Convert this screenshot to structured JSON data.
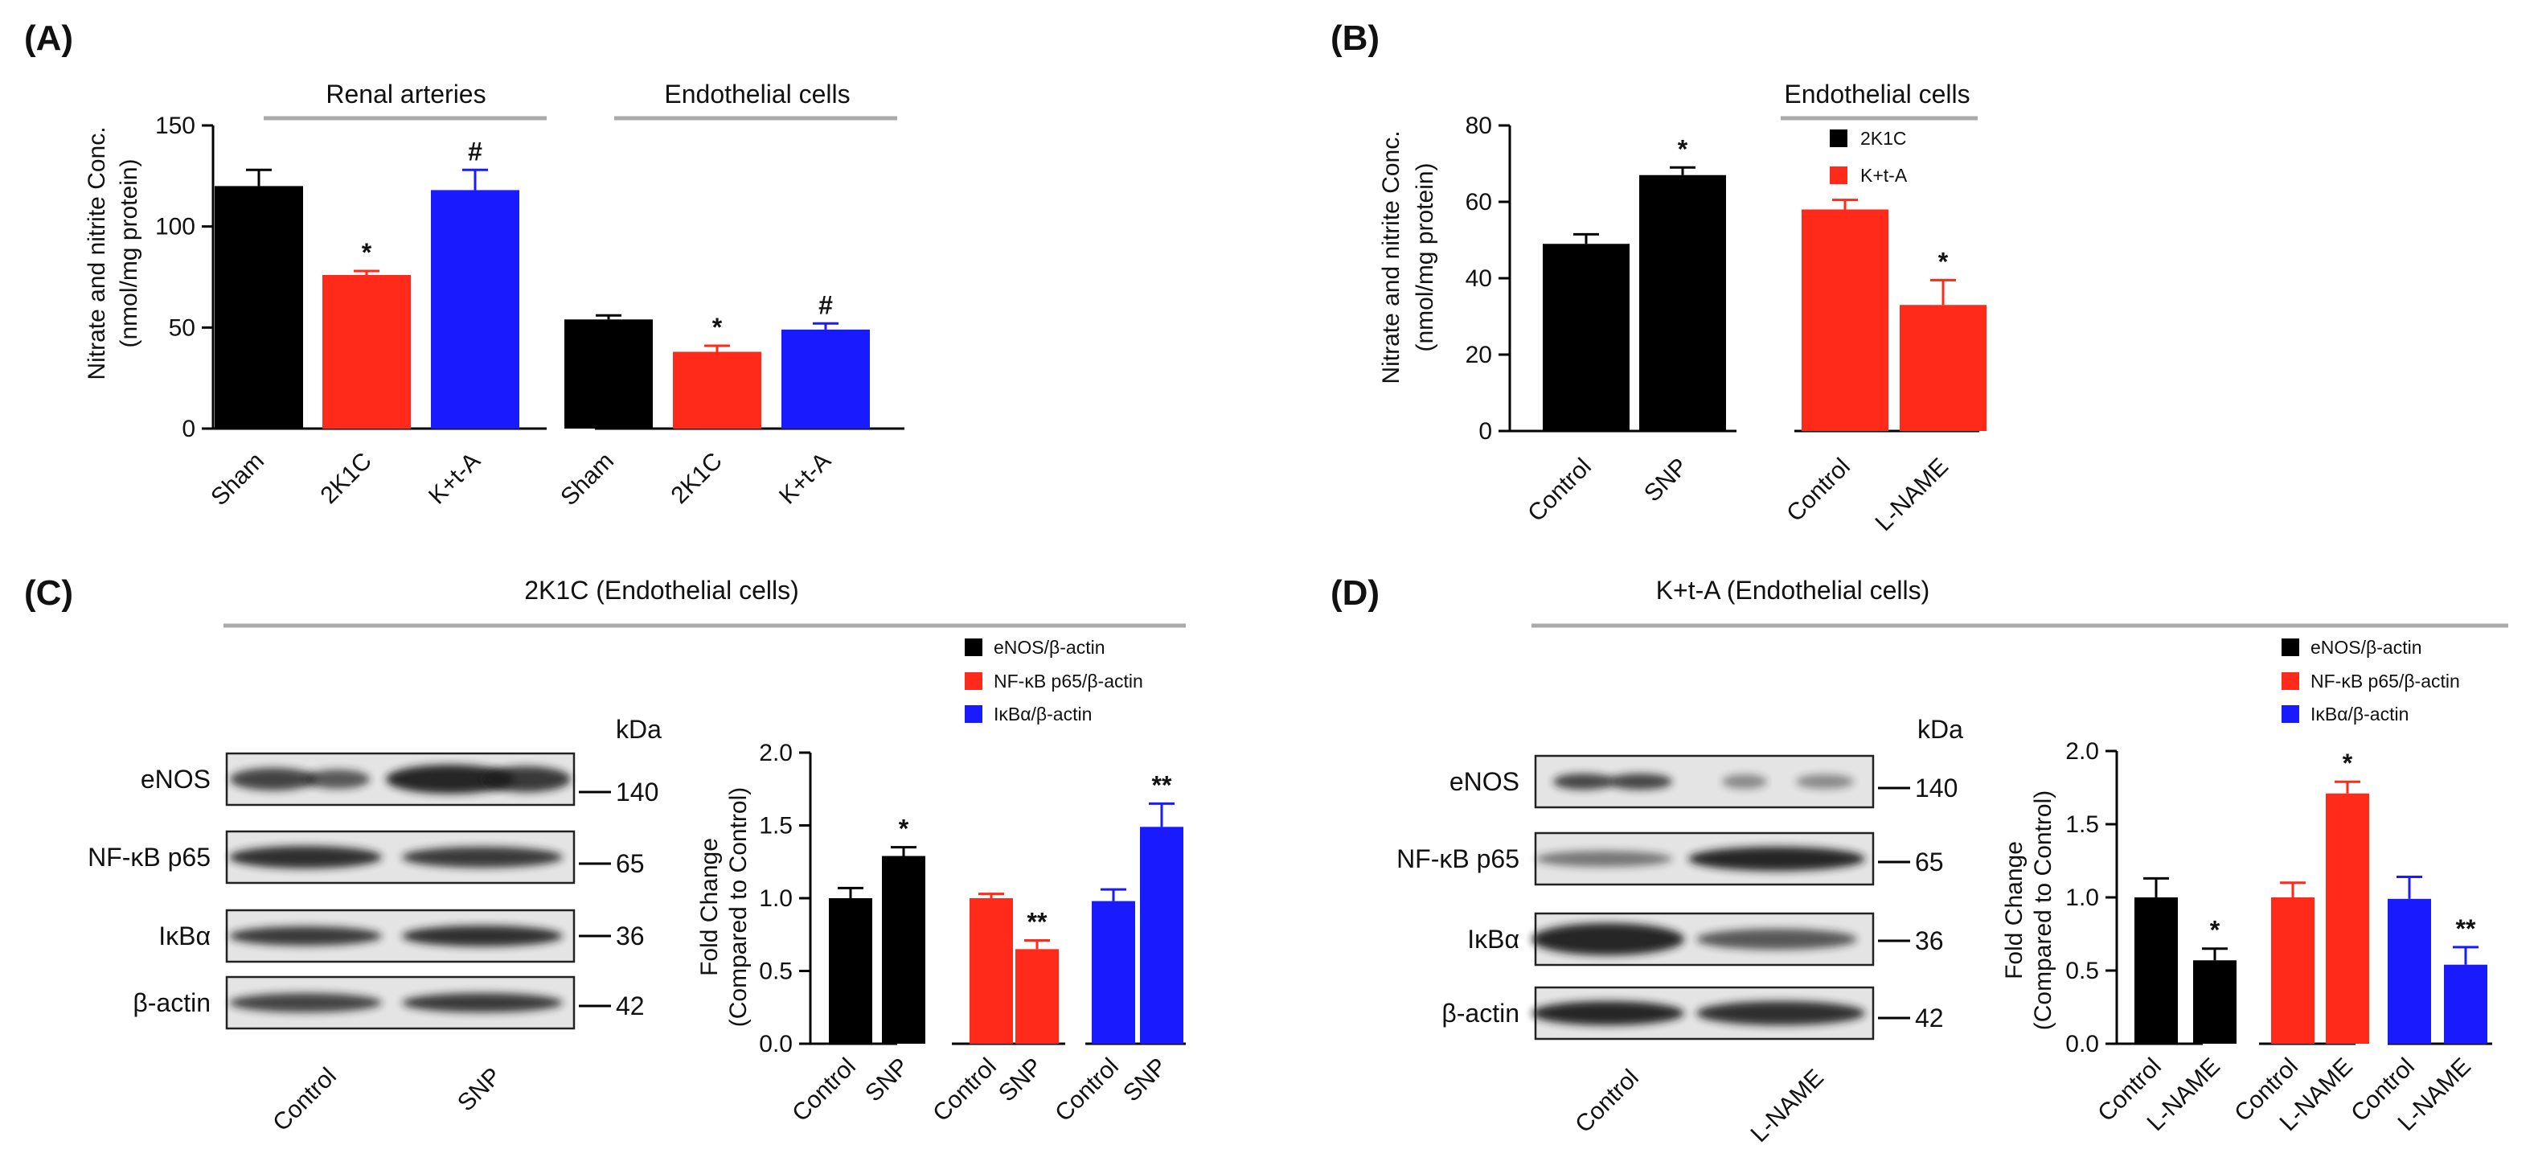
{
  "colors": {
    "black": "#000000",
    "red": "#ff2a1a",
    "blue": "#1a1aff",
    "err_black": "#000000",
    "err_red": "#ff2a1a",
    "err_blue": "#1a1aff"
  },
  "panel_labels": {
    "a": "(A)",
    "b": "(B)",
    "c": "(C)",
    "d": "(D)"
  },
  "panel_a": {
    "group_labels": [
      "Renal arteries",
      "Endothelial cells"
    ],
    "ylabel_line1": "Nitrate and nitrite Conc.",
    "ylabel_line2": "(nmol/mg protein)"
  },
  "panel_b": {
    "group_label": "Endothelial cells",
    "ylabel_line1": "Nitrate and nitrite Conc.",
    "ylabel_line2": "(nmol/mg protein)",
    "legend": [
      {
        "label": "2K1C",
        "color": "#000000"
      },
      {
        "label": "K+t-A",
        "color": "#ff2a1a"
      }
    ]
  },
  "panel_c": {
    "title": "2K1C (Endothelial cells)",
    "kda_header": "kDa",
    "blot_rows": [
      {
        "protein": "eNOS",
        "kda": "140"
      },
      {
        "protein": "NF-κB p65",
        "kda": "65"
      },
      {
        "protein": "IκBα",
        "kda": "36"
      },
      {
        "protein": "β-actin",
        "kda": "42"
      }
    ],
    "lane_labels": [
      "Control",
      "SNP"
    ],
    "ylabel_line1": "Fold Change",
    "ylabel_line2": "(Compared to Control)",
    "legend": [
      {
        "label": "eNOS/β-actin",
        "color": "#000000"
      },
      {
        "label": "NF-κB p65/β-actin",
        "color": "#ff2a1a"
      },
      {
        "label": "IκBα/β-actin",
        "color": "#1a1aff"
      }
    ]
  },
  "panel_d": {
    "title": "K+t-A (Endothelial cells)",
    "kda_header": "kDa",
    "blot_rows": [
      {
        "protein": "eNOS",
        "kda": "140"
      },
      {
        "protein": "NF-κB p65",
        "kda": "65"
      },
      {
        "protein": "IκBα",
        "kda": "36"
      },
      {
        "protein": "β-actin",
        "kda": "42"
      }
    ],
    "lane_labels": [
      "Control",
      "L-NAME"
    ],
    "ylabel_line1": "Fold Change",
    "ylabel_line2": "(Compared to Control)",
    "legend": [
      {
        "label": "eNOS/β-actin",
        "color": "#000000"
      },
      {
        "label": "NF-κB p65/β-actin",
        "color": "#ff2a1a"
      },
      {
        "label": "IκBα/β-actin",
        "color": "#1a1aff"
      }
    ]
  },
  "chart_data": [
    {
      "panel": "A",
      "type": "bar",
      "ylabel": "Nitrate and nitrite Conc. (nmol/mg protein)",
      "ylim": [
        0,
        150
      ],
      "yticks": [
        0,
        50,
        100,
        150
      ],
      "groups": [
        "Renal arteries",
        "Endothelial cells"
      ],
      "categories": [
        "Sham",
        "2K1C",
        "K+t-A",
        "Sham",
        "2K1C",
        "K+t-A"
      ],
      "values": [
        120,
        76,
        118,
        54,
        38,
        49
      ],
      "errors": [
        8,
        2,
        10,
        2,
        3,
        3
      ],
      "colors": [
        "black",
        "red",
        "blue",
        "black",
        "red",
        "blue"
      ],
      "significance": [
        "",
        "*",
        "#",
        "",
        "*",
        "#"
      ]
    },
    {
      "panel": "B",
      "type": "bar",
      "ylabel": "Nitrate and nitrite Conc. (nmol/mg protein)",
      "ylim": [
        0,
        80
      ],
      "yticks": [
        0,
        20,
        40,
        60,
        80
      ],
      "categories": [
        "Control",
        "SNP",
        "Control",
        "L-NAME"
      ],
      "values": [
        49,
        67,
        58,
        33
      ],
      "errors": [
        2.5,
        2,
        2.5,
        6.5
      ],
      "colors": [
        "black",
        "black",
        "red",
        "red"
      ],
      "significance": [
        "",
        "*",
        "",
        "*"
      ],
      "legend": [
        "2K1C",
        "K+t-A"
      ]
    },
    {
      "panel": "C",
      "type": "bar",
      "ylabel": "Fold Change (Compared to Control)",
      "ylim": [
        0,
        2.0
      ],
      "yticks": [
        "0.0",
        "0.5",
        "1.0",
        "1.5",
        "2.0"
      ],
      "categories": [
        "Control",
        "SNP",
        "Control",
        "SNP",
        "Control",
        "SNP"
      ],
      "series": [
        "eNOS/β-actin",
        "eNOS/β-actin",
        "NF-κB p65/β-actin",
        "NF-κB p65/β-actin",
        "IκBα/β-actin",
        "IκBα/β-actin"
      ],
      "values": [
        1.0,
        1.29,
        1.0,
        0.65,
        0.98,
        1.49
      ],
      "errors": [
        0.07,
        0.06,
        0.03,
        0.06,
        0.08,
        0.16
      ],
      "colors": [
        "black",
        "black",
        "red",
        "red",
        "blue",
        "blue"
      ],
      "significance": [
        "",
        "*",
        "",
        "**",
        "",
        "**"
      ]
    },
    {
      "panel": "D",
      "type": "bar",
      "ylabel": "Fold Change (Compared to Control)",
      "ylim": [
        0,
        2.0
      ],
      "yticks": [
        "0.0",
        "0.5",
        "1.0",
        "1.5",
        "2.0"
      ],
      "categories": [
        "Control",
        "L-NAME",
        "Control",
        "L-NAME",
        "Control",
        "L-NAME"
      ],
      "series": [
        "eNOS/β-actin",
        "eNOS/β-actin",
        "NF-κB p65/β-actin",
        "NF-κB p65/β-actin",
        "IκBα/β-actin",
        "IκBα/β-actin"
      ],
      "values": [
        1.0,
        0.57,
        1.0,
        1.71,
        0.99,
        0.54
      ],
      "errors": [
        0.13,
        0.08,
        0.1,
        0.08,
        0.15,
        0.12
      ],
      "colors": [
        "black",
        "black",
        "red",
        "red",
        "blue",
        "blue"
      ],
      "significance": [
        "",
        "*",
        "",
        "*",
        "",
        "**"
      ]
    }
  ]
}
